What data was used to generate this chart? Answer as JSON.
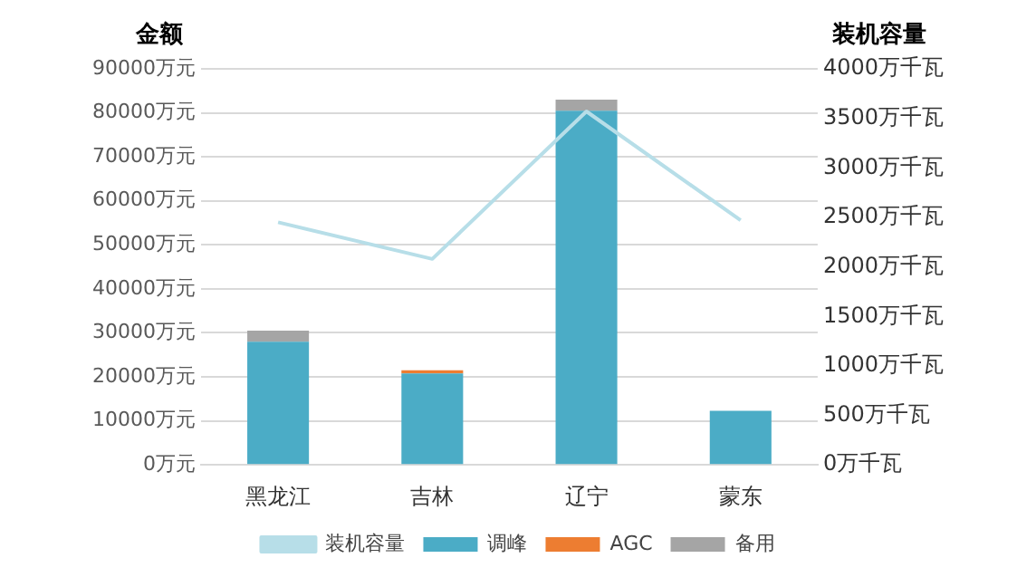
{
  "chart_data": {
    "type": "bar",
    "stacked": true,
    "ylabel": "金额",
    "y2label": "装机容量",
    "categories": [
      "黑龙江",
      "吉林",
      "辽宁",
      "蒙东"
    ],
    "series": [
      {
        "name": "调峰",
        "color": "#4bacc6",
        "values": [
          28000,
          20800,
          80500,
          12300
        ]
      },
      {
        "name": "AGC",
        "color": "#ed7d31",
        "values": [
          0,
          700,
          0,
          0
        ]
      },
      {
        "name": "备用",
        "color": "#a5a5a5",
        "values": [
          2500,
          0,
          2500,
          0
        ]
      },
      {
        "name": "装机容量",
        "type": "line",
        "axis": "y2",
        "color": "#b7dee8",
        "values": [
          2450,
          2080,
          3570,
          2470
        ]
      }
    ],
    "ylim": [
      0,
      90000
    ],
    "yticks": [
      {
        "value": 0,
        "label": "0万元"
      },
      {
        "value": 10000,
        "label": "10000万元"
      },
      {
        "value": 20000,
        "label": "20000万元"
      },
      {
        "value": 30000,
        "label": "30000万元"
      },
      {
        "value": 40000,
        "label": "40000万元"
      },
      {
        "value": 50000,
        "label": "50000万元"
      },
      {
        "value": 60000,
        "label": "60000万元"
      },
      {
        "value": 70000,
        "label": "70000万元"
      },
      {
        "value": 80000,
        "label": "80000万元"
      },
      {
        "value": 90000,
        "label": "90000万元"
      }
    ],
    "y2lim": [
      0,
      4000
    ],
    "y2ticks": [
      {
        "value": 0,
        "label": "0万千瓦"
      },
      {
        "value": 500,
        "label": "500万千瓦"
      },
      {
        "value": 1000,
        "label": "1000万千瓦"
      },
      {
        "value": 1500,
        "label": "1500万千瓦"
      },
      {
        "value": 2000,
        "label": "2000万千瓦"
      },
      {
        "value": 2500,
        "label": "2500万千瓦"
      },
      {
        "value": 3000,
        "label": "3000万千瓦"
      },
      {
        "value": 3500,
        "label": "3500万千瓦"
      },
      {
        "value": 4000,
        "label": "4000万千瓦"
      }
    ],
    "grid": "y",
    "legend": "bottom",
    "marker": "none"
  }
}
